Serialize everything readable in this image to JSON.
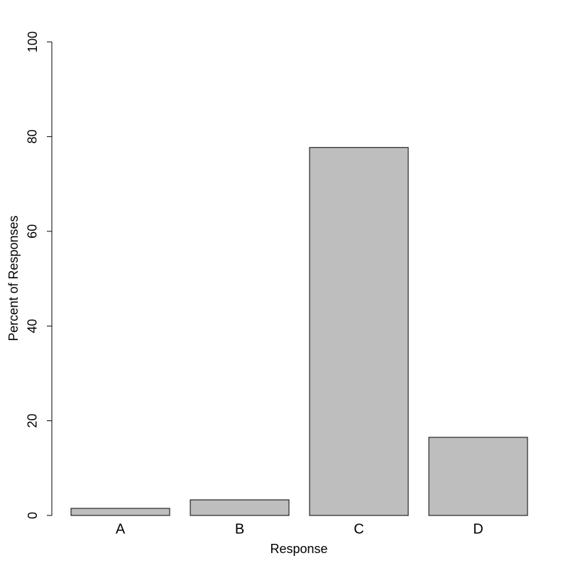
{
  "chart_data": {
    "type": "bar",
    "x_label": "Response",
    "y_label": "Percent of Responses",
    "categories": [
      "A",
      "B",
      "C",
      "D"
    ],
    "values": [
      1.5,
      3.3,
      77.7,
      16.5
    ],
    "color": "#bebebe",
    "ylim": [
      0,
      100
    ],
    "yticks": [
      0,
      20,
      40,
      60,
      80,
      100
    ],
    "grid": false
  }
}
